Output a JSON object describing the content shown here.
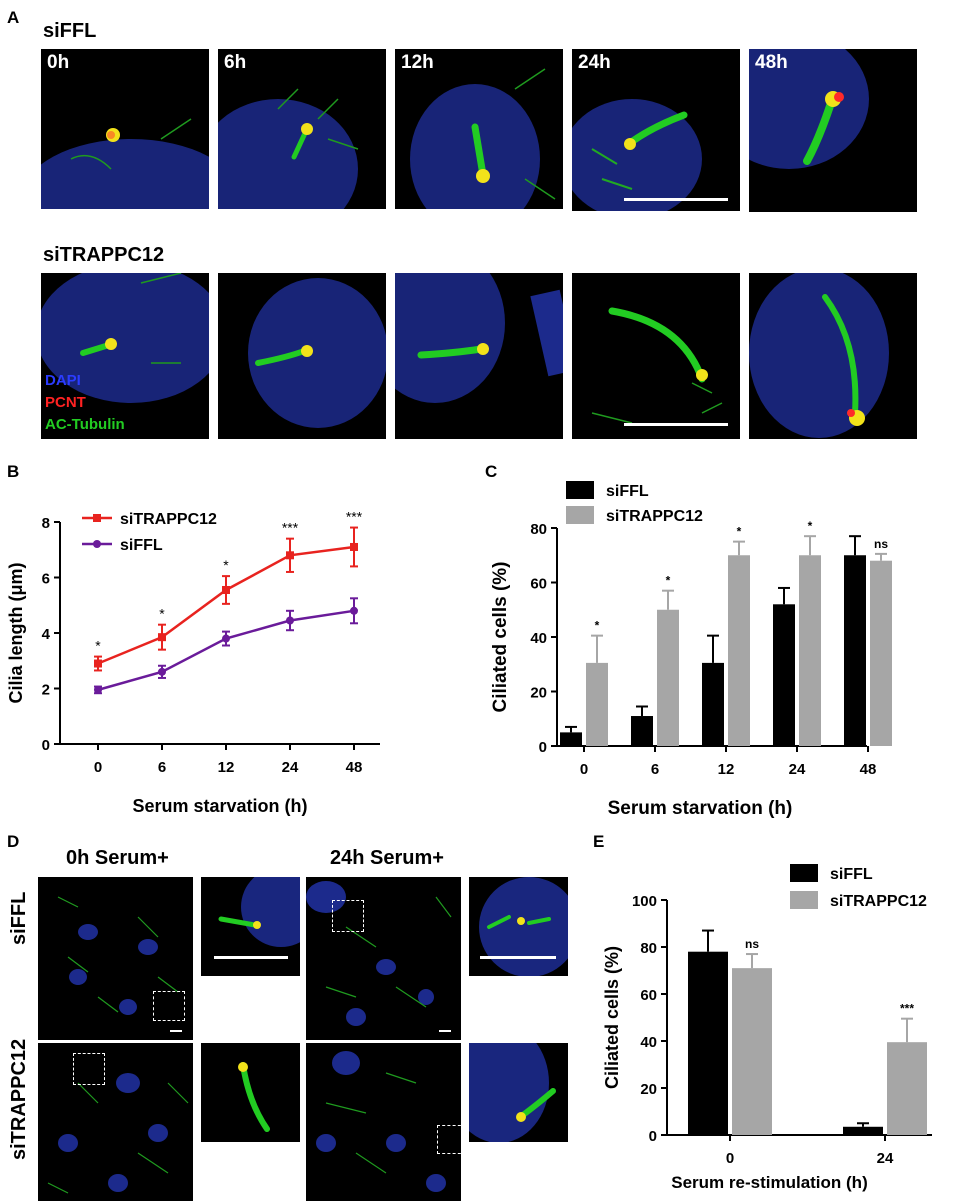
{
  "panels": {
    "A": {
      "letter": "A",
      "row1_title": "siFFL",
      "row2_title": "siTRAPPC12",
      "time_labels": [
        "0h",
        "6h",
        "12h",
        "24h",
        "48h"
      ],
      "stain_legend": {
        "dapi": {
          "label": "DAPI",
          "color": "#2b3cff"
        },
        "pcnt": {
          "label": "PCNT",
          "color": "#ff2222"
        },
        "ac_tubulin": {
          "label": "AC-Tubulin",
          "color": "#22cc22"
        }
      }
    },
    "B": {
      "letter": "B"
    },
    "C": {
      "letter": "C"
    },
    "D": {
      "letter": "D",
      "col1_title": "0h Serum+",
      "col2_title": "24h Serum+",
      "row1_label": "siFFL",
      "row2_label": "siTRAPPC12"
    },
    "E": {
      "letter": "E"
    }
  },
  "chart_data": [
    {
      "panel": "B",
      "type": "line",
      "categories": [
        "0",
        "6",
        "12",
        "24",
        "48"
      ],
      "xlabel": "Serum starvation (h)",
      "ylabel": "Cilia length (μm)",
      "ylim": [
        0,
        8
      ],
      "yticks": [
        "0",
        "2",
        "4",
        "6",
        "8"
      ],
      "grid": false,
      "legend_position": "top-left",
      "series": [
        {
          "name": "siTRAPPC12",
          "color": "#e8231f",
          "marker": "square",
          "values": [
            2.9,
            3.85,
            5.55,
            6.8,
            7.1
          ],
          "errors": [
            0.25,
            0.45,
            0.5,
            0.6,
            0.7
          ]
        },
        {
          "name": "siFFL",
          "color": "#6a1b9a",
          "marker": "circle",
          "values": [
            1.95,
            2.6,
            3.8,
            4.45,
            4.8
          ],
          "errors": [
            0.12,
            0.22,
            0.25,
            0.35,
            0.45
          ]
        }
      ],
      "significance": [
        "*",
        "*",
        "*",
        "***",
        "***"
      ]
    },
    {
      "panel": "C",
      "type": "bar",
      "categories": [
        "0",
        "6",
        "12",
        "24",
        "48"
      ],
      "xlabel": "Serum starvation (h)",
      "ylabel": "Ciliated cells (%)",
      "ylim": [
        0,
        80
      ],
      "yticks": [
        "0",
        "20",
        "40",
        "60",
        "80"
      ],
      "grid": false,
      "legend_position": "top-left",
      "series": [
        {
          "name": "siFFL",
          "color": "#000000",
          "values": [
            5,
            11,
            30.5,
            52,
            70
          ],
          "errors": [
            2,
            3.5,
            10,
            6,
            7
          ]
        },
        {
          "name": "siTRAPPC12",
          "color": "#a6a6a6",
          "values": [
            30.5,
            50,
            70,
            70,
            68
          ],
          "errors": [
            10,
            7,
            5,
            7,
            2.5
          ]
        }
      ],
      "significance": [
        "*",
        "*",
        "*",
        "*",
        "ns"
      ]
    },
    {
      "panel": "E",
      "type": "bar",
      "categories": [
        "0",
        "24"
      ],
      "xlabel": "Serum re-stimulation  (h)",
      "ylabel": "Ciliated cells (%)",
      "ylim": [
        0,
        100
      ],
      "yticks": [
        "0",
        "20",
        "40",
        "60",
        "80",
        "100"
      ],
      "grid": false,
      "legend_position": "top-right",
      "series": [
        {
          "name": "siFFL",
          "color": "#000000",
          "values": [
            78,
            3.5
          ],
          "errors": [
            9,
            1.5
          ]
        },
        {
          "name": "siTRAPPC12",
          "color": "#a6a6a6",
          "values": [
            71,
            39.5
          ],
          "errors": [
            6,
            10
          ]
        }
      ],
      "significance": [
        "ns",
        "***"
      ]
    }
  ]
}
